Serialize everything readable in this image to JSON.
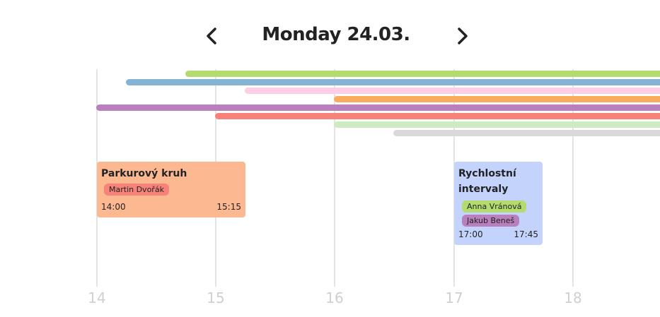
{
  "header": {
    "title": "Monday 24.03.",
    "prev_icon": "chevron-left-icon",
    "next_icon": "chevron-right-icon"
  },
  "axis": {
    "ticks": [
      "14",
      "15",
      "16",
      "17",
      "18"
    ]
  },
  "bars": [
    {
      "name": "green",
      "color": "#b4db6e"
    },
    {
      "name": "blue",
      "color": "#84b3d4"
    },
    {
      "name": "pink",
      "color": "#fccfe6"
    },
    {
      "name": "orange",
      "color": "#f9ab5f"
    },
    {
      "name": "purple",
      "color": "#b980bd"
    },
    {
      "name": "red",
      "color": "#f7827a"
    },
    {
      "name": "light-green",
      "color": "#cdebc0"
    },
    {
      "name": "gray",
      "color": "#d9d9d9"
    }
  ],
  "events": [
    {
      "title": "Parkurový kruh",
      "people": [
        "Martin Dvořák"
      ],
      "start": "14:00",
      "end": "15:15",
      "color": "#fbb891",
      "tag_colors": [
        "#f7827a"
      ]
    },
    {
      "title": "Rychlostní intervaly",
      "people": [
        "Anna Vránová",
        "Jakub Beneš"
      ],
      "start": "17:00",
      "end": "17:45",
      "color": "#c3d3fc",
      "tag_colors": [
        "#b4db6e",
        "#b980bd"
      ]
    }
  ]
}
